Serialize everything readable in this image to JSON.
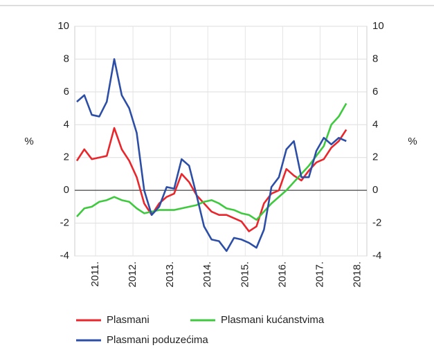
{
  "chart_data": {
    "type": "line",
    "y_label": "%",
    "y2_label": "%",
    "x": [
      2011.0,
      2011.2,
      2011.4,
      2011.6,
      2011.8,
      2012.0,
      2012.2,
      2012.4,
      2012.6,
      2012.8,
      2013.0,
      2013.2,
      2013.4,
      2013.6,
      2013.8,
      2014.0,
      2014.2,
      2014.4,
      2014.6,
      2014.8,
      2015.0,
      2015.2,
      2015.4,
      2015.6,
      2015.8,
      2016.0,
      2016.2,
      2016.4,
      2016.6,
      2016.8,
      2017.0,
      2017.2,
      2017.4,
      2017.6,
      2017.8,
      2018.0,
      2018.2
    ],
    "series": [
      {
        "name": "Plasmani",
        "color": "#e8262b",
        "values": [
          1.8,
          2.5,
          1.9,
          2.0,
          2.1,
          3.8,
          2.5,
          1.8,
          0.8,
          -0.8,
          -1.5,
          -0.8,
          -0.4,
          -0.2,
          1.0,
          0.5,
          -0.3,
          -0.8,
          -1.3,
          -1.5,
          -1.5,
          -1.7,
          -1.9,
          -2.5,
          -2.2,
          -0.8,
          -0.2,
          0.0,
          1.3,
          0.9,
          0.6,
          1.2,
          1.7,
          1.9,
          2.6,
          3.0,
          3.7
        ]
      },
      {
        "name": "Plasmani kućanstvima",
        "color": "#3ec93e",
        "values": [
          -1.6,
          -1.1,
          -1.0,
          -0.7,
          -0.6,
          -0.4,
          -0.6,
          -0.7,
          -1.1,
          -1.4,
          -1.3,
          -1.2,
          -1.2,
          -1.2,
          -1.1,
          -1.0,
          -0.9,
          -0.7,
          -0.6,
          -0.8,
          -1.1,
          -1.2,
          -1.4,
          -1.5,
          -1.8,
          -1.3,
          -0.8,
          -0.4,
          0.0,
          0.5,
          1.0,
          1.5,
          2.1,
          2.7,
          4.0,
          4.5,
          5.3
        ]
      },
      {
        "name": "Plasmani poduzećima",
        "color": "#2c4ea6",
        "values": [
          5.4,
          5.8,
          4.6,
          4.5,
          5.4,
          8.0,
          5.8,
          5.0,
          3.5,
          0.0,
          -1.5,
          -1.0,
          0.2,
          0.1,
          1.9,
          1.5,
          -0.3,
          -2.2,
          -3.0,
          -3.1,
          -3.7,
          -2.9,
          -3.0,
          -3.2,
          -3.5,
          -2.4,
          0.2,
          0.8,
          2.5,
          3.0,
          0.8,
          0.8,
          2.4,
          3.2,
          2.8,
          3.2,
          3.0
        ]
      }
    ],
    "xlim": [
      2011.0,
      2018.75
    ],
    "xticks": [
      {
        "value": 2011.5,
        "label": "2011."
      },
      {
        "value": 2012.5,
        "label": "2012."
      },
      {
        "value": 2013.5,
        "label": "2013."
      },
      {
        "value": 2014.5,
        "label": "2014."
      },
      {
        "value": 2015.5,
        "label": "2015."
      },
      {
        "value": 2016.5,
        "label": "2016."
      },
      {
        "value": 2017.5,
        "label": "2017."
      },
      {
        "value": 2018.5,
        "label": "2018."
      }
    ],
    "ylim": [
      -4,
      10
    ],
    "yticks": [
      -4,
      -2,
      0,
      2,
      4,
      6,
      8,
      10
    ],
    "y2lim": [
      -4,
      10
    ],
    "y2ticks": [
      -4,
      -2,
      0,
      2,
      4,
      6,
      8,
      10
    ],
    "grid": true
  }
}
